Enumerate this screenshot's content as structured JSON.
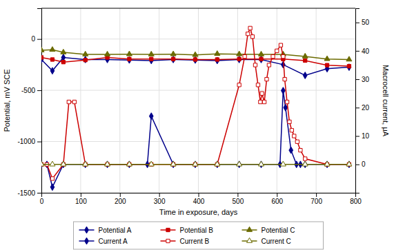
{
  "chart_data": {
    "type": "line",
    "xlabel": "Time in exposure, days",
    "ylabel": "Potential, mV SCE",
    "y2label": "Macrocell current, μA",
    "xlim": [
      0,
      800
    ],
    "xticks": [
      0,
      100,
      200,
      300,
      400,
      500,
      600,
      700,
      800
    ],
    "ylim": [
      -1500,
      300
    ],
    "yticks": [
      -1500,
      -1000,
      -500,
      0
    ],
    "y2lim": [
      -10,
      55
    ],
    "y2ticks": [
      0,
      10,
      20,
      30,
      40,
      50
    ],
    "grid": true,
    "legend": "bottom",
    "series": [
      {
        "name": "Potential A",
        "color": "#00008b",
        "marker": "diamond",
        "x": [
          0,
          28,
          56,
          112,
          168,
          224,
          280,
          336,
          392,
          448,
          504,
          560,
          616,
          672,
          728,
          784
        ],
        "values": [
          -200,
          -310,
          -180,
          -200,
          -200,
          -205,
          -210,
          -200,
          -205,
          -210,
          -200,
          -200,
          -250,
          -355,
          -290,
          -275
        ]
      },
      {
        "name": "Potential B",
        "color": "#cc0000",
        "marker": "square",
        "x": [
          0,
          28,
          56,
          112,
          168,
          224,
          280,
          336,
          392,
          448,
          504,
          560,
          616,
          672,
          728,
          784
        ],
        "values": [
          -180,
          -200,
          -225,
          -205,
          -180,
          -195,
          -195,
          -195,
          -200,
          -200,
          -195,
          -195,
          -195,
          -210,
          -255,
          -265
        ]
      },
      {
        "name": "Potential C",
        "color": "#6b6b00",
        "marker": "triangle",
        "x": [
          0,
          28,
          56,
          112,
          168,
          224,
          280,
          336,
          392,
          448,
          504,
          560,
          616,
          672,
          728,
          784
        ],
        "values": [
          -110,
          -105,
          -130,
          -150,
          -150,
          -148,
          -150,
          -148,
          -155,
          -145,
          -148,
          -150,
          -150,
          -170,
          -195,
          -200
        ]
      },
      {
        "name": "Current A",
        "color": "#00008b",
        "marker": "diamond",
        "axis": "y2",
        "x": [
          0,
          14,
          28,
          56,
          112,
          168,
          224,
          270,
          280,
          336,
          392,
          448,
          504,
          560,
          608,
          616,
          622,
          636,
          650,
          660,
          672,
          728,
          784
        ],
        "values": [
          0,
          0,
          -8,
          0,
          0,
          0,
          0,
          0,
          17,
          0,
          0,
          0,
          0,
          0,
          0,
          26,
          20,
          5,
          0,
          0,
          0,
          0,
          0
        ]
      },
      {
        "name": "Current B",
        "color": "#cc0000",
        "marker": "square-open",
        "axis": "y2",
        "x": [
          0,
          14,
          28,
          56,
          70,
          84,
          112,
          168,
          224,
          280,
          336,
          392,
          448,
          504,
          518,
          526,
          532,
          538,
          545,
          552,
          558,
          562,
          568,
          574,
          580,
          590,
          600,
          610,
          616,
          620,
          626,
          632,
          638,
          644,
          652,
          660,
          672,
          728,
          784
        ],
        "values": [
          0,
          0,
          -5,
          0,
          22,
          22,
          0,
          0,
          0,
          0,
          0,
          0,
          0,
          28,
          38,
          46,
          48,
          45,
          35,
          28,
          22,
          25,
          22,
          30,
          35,
          38,
          40,
          42,
          38,
          30,
          22,
          15,
          12,
          10,
          8,
          5,
          2,
          0,
          0
        ]
      },
      {
        "name": "Current C",
        "color": "#6b6b00",
        "marker": "triangle-open",
        "axis": "y2",
        "x": [
          0,
          28,
          56,
          112,
          168,
          224,
          280,
          336,
          392,
          448,
          504,
          560,
          616,
          672,
          728,
          784
        ],
        "values": [
          0,
          0,
          0,
          0,
          0,
          0,
          0,
          0,
          0,
          0,
          0,
          0,
          0,
          0,
          0,
          0
        ]
      }
    ]
  }
}
